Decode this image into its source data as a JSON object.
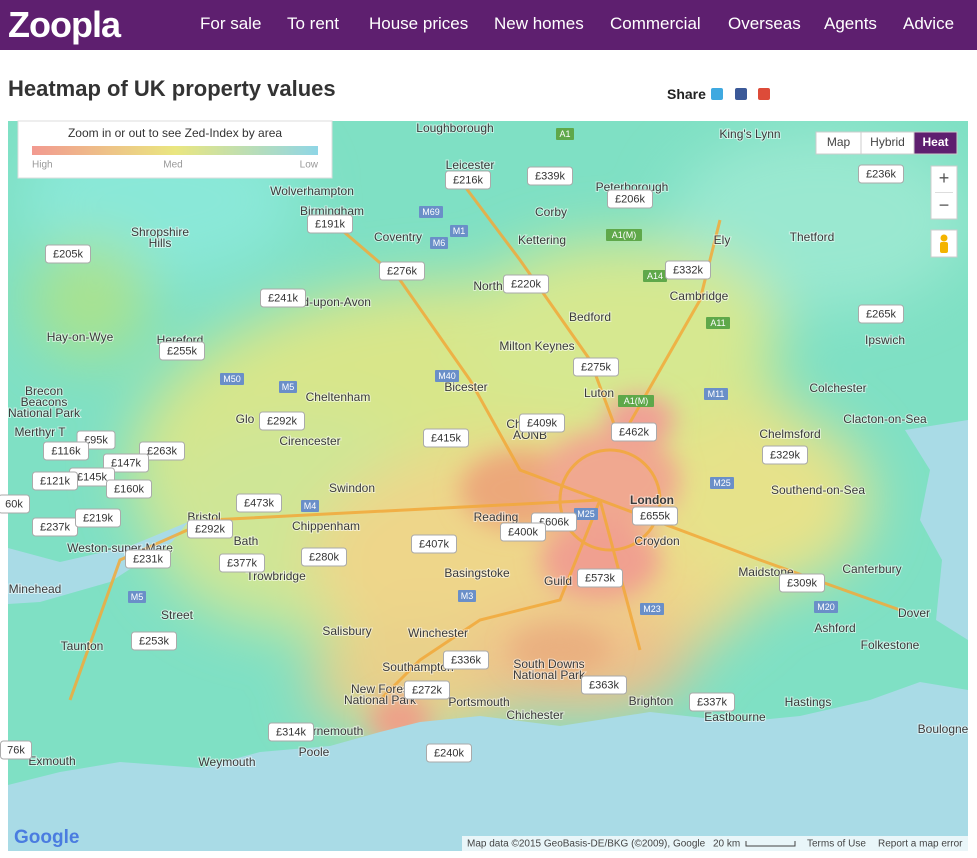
{
  "header": {
    "logo": "Zoopla",
    "nav": [
      "For sale",
      "To rent",
      "House prices",
      "New homes",
      "Commercial",
      "Overseas",
      "Agents",
      "Advice"
    ]
  },
  "title": "Heatmap of UK property values",
  "share": "Share",
  "legend": {
    "text": "Zoom in or out to see Zed-Index by area",
    "high": "High",
    "med": "Med",
    "low": "Low"
  },
  "map_types": [
    "Map",
    "Hybrid",
    "Heat"
  ],
  "zoom": [
    "+",
    "−"
  ],
  "price_labels": [
    "£216k",
    "£339k",
    "£206k",
    "£236k",
    "£191k",
    "£205k",
    "£276k",
    "£220k",
    "£332k",
    "£241k",
    "£265k",
    "£255k",
    "£275k",
    "£292k",
    "£409k",
    "£415k",
    "£462k",
    "£95k",
    "£263k",
    "£116k",
    "£147k",
    "£329k",
    "£145k",
    "£121k",
    "£160k",
    "£473k",
    "60k",
    "£655k",
    "£606k",
    "£237k",
    "£219k",
    "£400k",
    "£292k",
    "£407k",
    "£231k",
    "£377k",
    "£280k",
    "£573k",
    "£309k",
    "£253k",
    "£336k",
    "£272k",
    "£363k",
    "£337k",
    "£314k",
    "76k",
    "£240k"
  ],
  "places": [
    "Loughborough",
    "King's Lynn",
    "Leicester",
    "Peterborough",
    "Wolverhampton",
    "Birmingham",
    "Corby",
    "Coventry",
    "Kettering",
    "Ely",
    "Thetford",
    "Shropshire",
    "Hills",
    "North",
    "Cambridge",
    "Stratford-upon-Avon",
    "Bedford",
    "Hay-on-Wye",
    "Hereford",
    "Ipswich",
    "Milton Keynes",
    "Cheltenham",
    "Bicester",
    "Luton",
    "Colchester",
    "Brecon",
    "Beacons",
    "National Park",
    "Chelmsford",
    "Clacton-on-Sea",
    "Glo",
    "Cirencester",
    "Merthyr T",
    "Chilterns",
    "AONB",
    "London",
    "Southend-on-Sea",
    "Swindon",
    "Reading",
    "Chippenham",
    "Bristol",
    "Croydon",
    "Bath",
    "Weston-super-Mare",
    "Trowbridge",
    "Basingstoke",
    "Guild",
    "Maidstone",
    "Canterbury",
    "Minehead",
    "Street",
    "Dover",
    "Ashford",
    "Salisbury",
    "Winchester",
    "Taunton",
    "Folkestone",
    "South Downs",
    "National Park",
    "Southampton",
    "New Fores",
    "National Park",
    "Portsmouth",
    "Brighton",
    "Hastings",
    "Chichester",
    "Eastbourne",
    "rnemouth",
    "Poole",
    "Exmouth",
    "Weymouth",
    "Boulogne"
  ],
  "roads": [
    "A1",
    "M69",
    "M1",
    "M6",
    "A14",
    "A1(M)",
    "A11",
    "M50",
    "M5",
    "M40",
    "M11",
    "A1(M)",
    "M25",
    "M25",
    "M4",
    "M3",
    "M23",
    "M20",
    "M5"
  ],
  "google_logo": "Google",
  "attribution": {
    "data": "Map data ©2015 GeoBasis-DE/BKG (©2009), Google",
    "scale": "20 km",
    "terms": "Terms of Use",
    "report": "Report a map error"
  }
}
